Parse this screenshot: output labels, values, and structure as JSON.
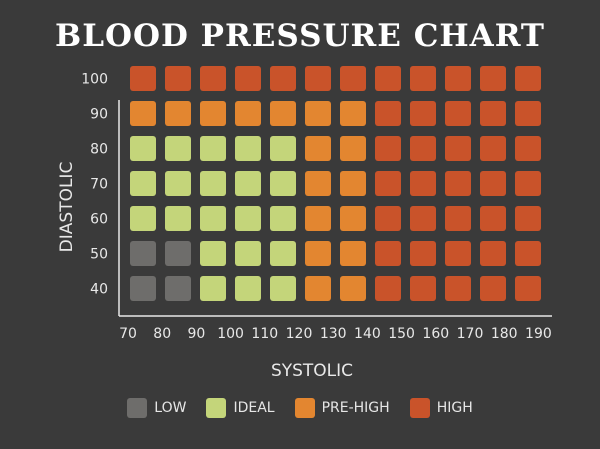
{
  "chart_data": {
    "type": "heatmap",
    "title": "BLOOD PRESSURE CHART",
    "xlabel": "SYSTOLIC",
    "ylabel": "DIASTOLIC",
    "x_ticks": [
      "70",
      "80",
      "90",
      "100",
      "110",
      "120",
      "130",
      "140",
      "150",
      "160",
      "170",
      "180",
      "190"
    ],
    "y_ticks": [
      "40",
      "50",
      "60",
      "70",
      "80",
      "90",
      "100"
    ],
    "x": [
      80,
      90,
      100,
      110,
      120,
      130,
      140,
      150,
      160,
      170,
      180,
      190
    ],
    "y": [
      40,
      50,
      60,
      70,
      80,
      90,
      100
    ],
    "legend": [
      {
        "key": "low",
        "label": "LOW",
        "color": "#6e6d6b"
      },
      {
        "key": "ideal",
        "label": "IDEAL",
        "color": "#c4d57a"
      },
      {
        "key": "prehigh",
        "label": "PRE-HIGH",
        "color": "#e38630"
      },
      {
        "key": "high",
        "label": "HIGH",
        "color": "#c9532a"
      }
    ],
    "grid": [
      [
        "low",
        "low",
        "ideal",
        "ideal",
        "ideal",
        "prehigh",
        "prehigh",
        "high",
        "high",
        "high",
        "high",
        "high"
      ],
      [
        "low",
        "low",
        "ideal",
        "ideal",
        "ideal",
        "prehigh",
        "prehigh",
        "high",
        "high",
        "high",
        "high",
        "high"
      ],
      [
        "ideal",
        "ideal",
        "ideal",
        "ideal",
        "ideal",
        "prehigh",
        "prehigh",
        "high",
        "high",
        "high",
        "high",
        "high"
      ],
      [
        "ideal",
        "ideal",
        "ideal",
        "ideal",
        "ideal",
        "prehigh",
        "prehigh",
        "high",
        "high",
        "high",
        "high",
        "high"
      ],
      [
        "ideal",
        "ideal",
        "ideal",
        "ideal",
        "ideal",
        "prehigh",
        "prehigh",
        "high",
        "high",
        "high",
        "high",
        "high"
      ],
      [
        "prehigh",
        "prehigh",
        "prehigh",
        "prehigh",
        "prehigh",
        "prehigh",
        "prehigh",
        "high",
        "high",
        "high",
        "high",
        "high"
      ],
      [
        "high",
        "high",
        "high",
        "high",
        "high",
        "high",
        "high",
        "high",
        "high",
        "high",
        "high",
        "high"
      ]
    ]
  }
}
